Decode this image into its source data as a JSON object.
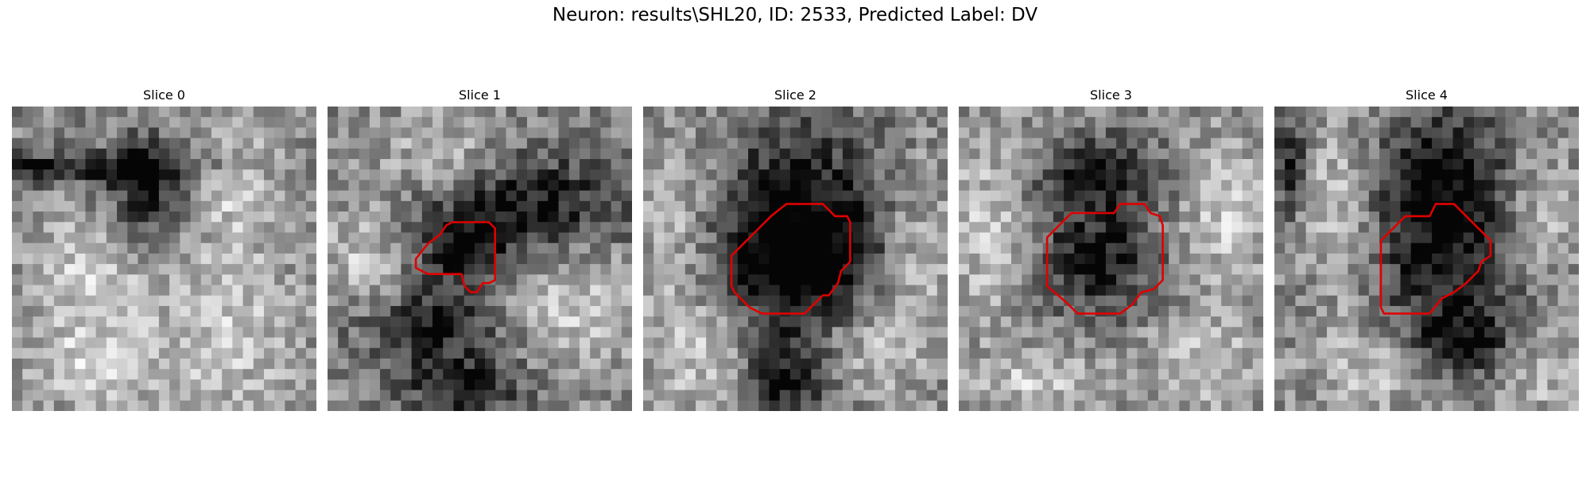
{
  "figure": {
    "title": "Neuron: results\\SHL20, ID: 2533, Predicted Label: DV"
  },
  "panels": [
    {
      "title": "Slice 0",
      "has_contour": false,
      "dark_regions": [
        [
          0.45,
          0.28,
          0.13,
          0.18
        ],
        [
          0.1,
          0.2,
          0.6,
          0.05
        ]
      ],
      "bright_regions": [
        [
          0.72,
          0.25,
          0.18,
          0.22
        ],
        [
          0.25,
          0.55,
          0.2,
          0.2
        ],
        [
          0.7,
          0.75,
          0.25,
          0.28
        ],
        [
          0.25,
          0.85,
          0.22,
          0.15
        ]
      ],
      "contour": []
    },
    {
      "title": "Slice 1",
      "has_contour": true,
      "dark_regions": [
        [
          0.65,
          0.32,
          0.35,
          0.17
        ],
        [
          0.45,
          0.48,
          0.15,
          0.12
        ],
        [
          0.35,
          0.72,
          0.25,
          0.12
        ],
        [
          0.45,
          0.92,
          0.2,
          0.1
        ]
      ],
      "bright_regions": [
        [
          0.38,
          0.17,
          0.2,
          0.15
        ],
        [
          0.12,
          0.5,
          0.14,
          0.18
        ],
        [
          0.78,
          0.65,
          0.28,
          0.2
        ]
      ],
      "contour": [
        [
          0.41,
          0.38
        ],
        [
          0.53,
          0.38
        ],
        [
          0.55,
          0.4
        ],
        [
          0.55,
          0.57
        ],
        [
          0.53,
          0.58
        ],
        [
          0.51,
          0.58
        ],
        [
          0.49,
          0.61
        ],
        [
          0.47,
          0.61
        ],
        [
          0.45,
          0.59
        ],
        [
          0.44,
          0.55
        ],
        [
          0.33,
          0.55
        ],
        [
          0.29,
          0.53
        ],
        [
          0.29,
          0.5
        ],
        [
          0.33,
          0.45
        ],
        [
          0.37,
          0.42
        ],
        [
          0.39,
          0.39
        ]
      ]
    },
    {
      "title": "Slice 2",
      "has_contour": true,
      "dark_regions": [
        [
          0.52,
          0.33,
          0.28,
          0.3
        ],
        [
          0.5,
          0.55,
          0.3,
          0.22
        ],
        [
          0.47,
          0.9,
          0.15,
          0.15
        ]
      ],
      "bright_regions": [
        [
          0.12,
          0.4,
          0.14,
          0.3
        ],
        [
          0.9,
          0.5,
          0.15,
          0.3
        ],
        [
          0.2,
          0.8,
          0.2,
          0.2
        ],
        [
          0.72,
          0.78,
          0.18,
          0.15
        ]
      ],
      "contour": [
        [
          0.55,
          0.32
        ],
        [
          0.59,
          0.32
        ],
        [
          0.63,
          0.36
        ],
        [
          0.67,
          0.36
        ],
        [
          0.68,
          0.38
        ],
        [
          0.68,
          0.51
        ],
        [
          0.65,
          0.54
        ],
        [
          0.64,
          0.58
        ],
        [
          0.61,
          0.62
        ],
        [
          0.59,
          0.62
        ],
        [
          0.55,
          0.66
        ],
        [
          0.53,
          0.68
        ],
        [
          0.39,
          0.68
        ],
        [
          0.35,
          0.66
        ],
        [
          0.3,
          0.61
        ],
        [
          0.29,
          0.59
        ],
        [
          0.29,
          0.49
        ],
        [
          0.33,
          0.45
        ],
        [
          0.37,
          0.41
        ],
        [
          0.42,
          0.36
        ],
        [
          0.47,
          0.32
        ]
      ]
    },
    {
      "title": "Slice 3",
      "has_contour": true,
      "dark_regions": [
        [
          0.45,
          0.22,
          0.2,
          0.12
        ],
        [
          0.45,
          0.5,
          0.2,
          0.18
        ]
      ],
      "bright_regions": [
        [
          0.1,
          0.4,
          0.15,
          0.3
        ],
        [
          0.88,
          0.35,
          0.15,
          0.25
        ],
        [
          0.8,
          0.85,
          0.2,
          0.15
        ],
        [
          0.25,
          0.9,
          0.2,
          0.1
        ]
      ],
      "contour": [
        [
          0.53,
          0.32
        ],
        [
          0.55,
          0.32
        ],
        [
          0.61,
          0.32
        ],
        [
          0.63,
          0.35
        ],
        [
          0.66,
          0.36
        ],
        [
          0.67,
          0.39
        ],
        [
          0.67,
          0.57
        ],
        [
          0.64,
          0.6
        ],
        [
          0.6,
          0.61
        ],
        [
          0.57,
          0.65
        ],
        [
          0.53,
          0.68
        ],
        [
          0.39,
          0.68
        ],
        [
          0.35,
          0.64
        ],
        [
          0.29,
          0.59
        ],
        [
          0.29,
          0.43
        ],
        [
          0.34,
          0.38
        ],
        [
          0.37,
          0.35
        ],
        [
          0.51,
          0.35
        ]
      ]
    },
    {
      "title": "Slice 4",
      "has_contour": true,
      "dark_regions": [
        [
          0.55,
          0.2,
          0.2,
          0.2
        ],
        [
          0.55,
          0.5,
          0.25,
          0.25
        ],
        [
          0.62,
          0.78,
          0.2,
          0.12
        ],
        [
          0.05,
          0.2,
          0.05,
          0.15
        ]
      ],
      "bright_regions": [
        [
          0.22,
          0.35,
          0.12,
          0.3
        ],
        [
          0.88,
          0.35,
          0.1,
          0.2
        ],
        [
          0.85,
          0.85,
          0.15,
          0.15
        ],
        [
          0.35,
          0.85,
          0.2,
          0.15
        ]
      ],
      "contour": [
        [
          0.53,
          0.32
        ],
        [
          0.55,
          0.32
        ],
        [
          0.59,
          0.32
        ],
        [
          0.63,
          0.36
        ],
        [
          0.67,
          0.4
        ],
        [
          0.71,
          0.44
        ],
        [
          0.71,
          0.49
        ],
        [
          0.68,
          0.51
        ],
        [
          0.67,
          0.54
        ],
        [
          0.63,
          0.58
        ],
        [
          0.59,
          0.61
        ],
        [
          0.55,
          0.63
        ],
        [
          0.51,
          0.68
        ],
        [
          0.36,
          0.68
        ],
        [
          0.35,
          0.66
        ],
        [
          0.35,
          0.44
        ],
        [
          0.39,
          0.4
        ],
        [
          0.43,
          0.36
        ],
        [
          0.51,
          0.36
        ]
      ]
    }
  ]
}
